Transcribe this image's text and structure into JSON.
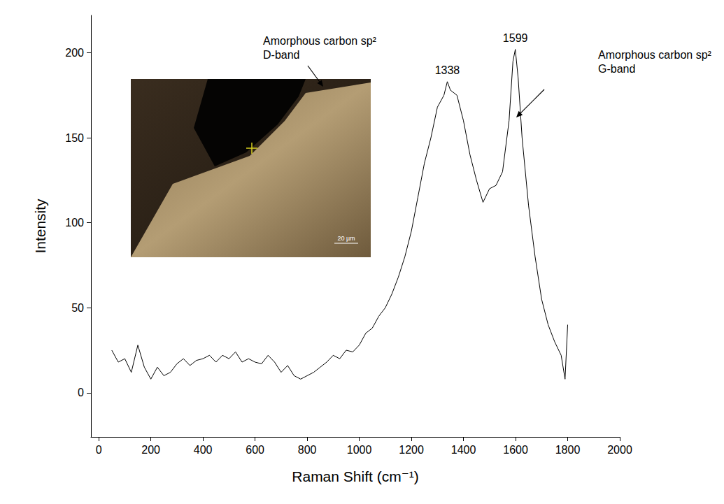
{
  "chart_data": {
    "type": "line",
    "x_label": "Raman Shift (cm⁻¹)",
    "y_label": "Intensity",
    "xlim": [
      -30,
      2000
    ],
    "xticks": [
      0,
      200,
      400,
      600,
      800,
      1000,
      1200,
      1400,
      1600,
      1800,
      2000
    ],
    "ylim": [
      -26,
      222
    ],
    "yticks": [
      0,
      50,
      100,
      150,
      200
    ],
    "grid": false,
    "color": "#000000",
    "x": [
      50,
      75,
      100,
      125,
      150,
      175,
      200,
      225,
      250,
      275,
      300,
      325,
      350,
      375,
      400,
      425,
      450,
      475,
      500,
      525,
      550,
      575,
      600,
      625,
      650,
      675,
      700,
      725,
      750,
      775,
      800,
      825,
      850,
      875,
      900,
      925,
      950,
      975,
      1000,
      1025,
      1050,
      1075,
      1100,
      1125,
      1150,
      1175,
      1200,
      1225,
      1250,
      1275,
      1300,
      1325,
      1338,
      1350,
      1375,
      1400,
      1425,
      1450,
      1475,
      1500,
      1525,
      1550,
      1575,
      1590,
      1599,
      1610,
      1625,
      1650,
      1675,
      1700,
      1725,
      1750,
      1775,
      1790,
      1800
    ],
    "values": [
      25,
      18,
      20,
      12,
      28,
      15,
      8,
      15,
      10,
      12,
      17,
      20,
      16,
      19,
      20,
      22,
      18,
      22,
      20,
      24,
      18,
      20,
      18,
      17,
      22,
      18,
      12,
      16,
      10,
      8,
      10,
      12,
      15,
      18,
      22,
      20,
      25,
      24,
      28,
      35,
      38,
      45,
      50,
      58,
      68,
      80,
      95,
      115,
      135,
      150,
      168,
      175,
      183,
      178,
      175,
      160,
      140,
      125,
      112,
      120,
      122,
      130,
      160,
      195,
      202,
      185,
      150,
      110,
      80,
      55,
      40,
      30,
      22,
      8,
      40
    ],
    "peak_labels": [
      1338,
      1599
    ],
    "annotations": [
      {
        "text": [
          "Amorphous carbon sp²",
          "D-band"
        ]
      },
      {
        "text": [
          "Amorphous carbon sp²",
          "G-band"
        ]
      }
    ],
    "inset_scale_bar": "20 µm"
  }
}
